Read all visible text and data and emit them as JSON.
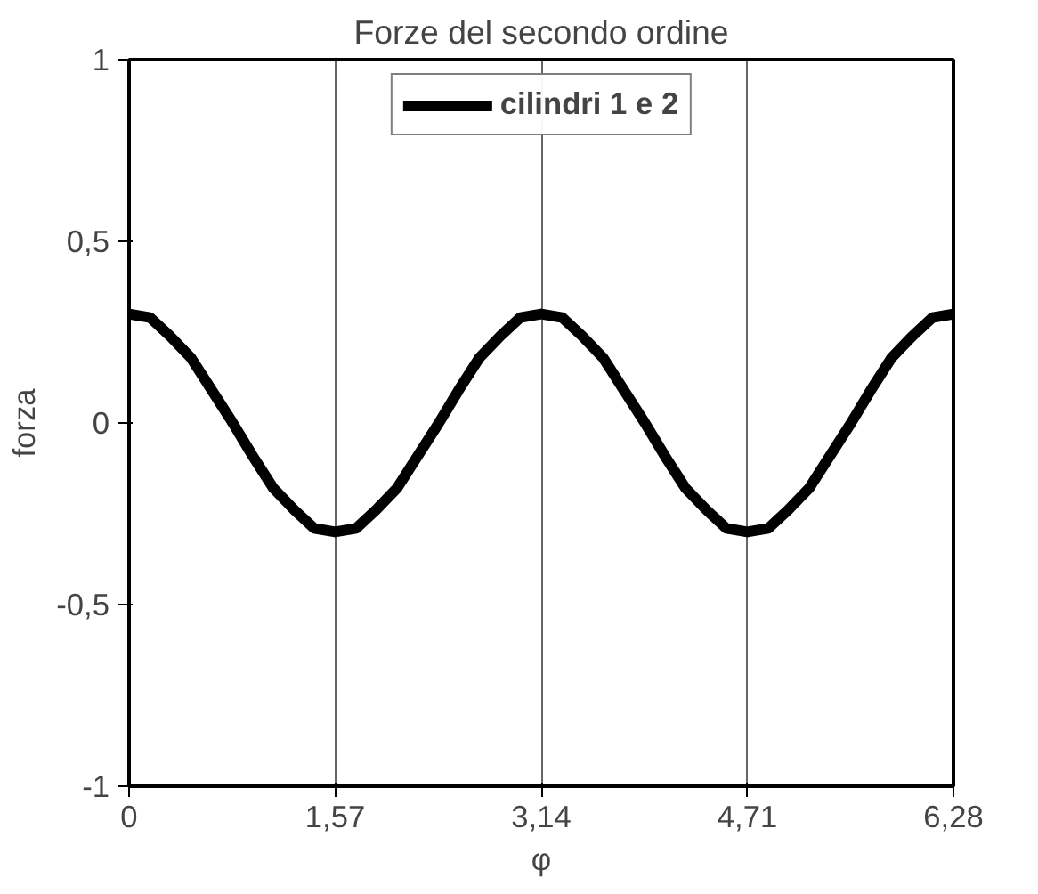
{
  "chart_data": {
    "type": "line",
    "title": "Forze del secondo ordine",
    "xlabel": "φ",
    "ylabel": "forza",
    "x": [
      0,
      0.16,
      0.31,
      0.47,
      0.63,
      0.79,
      0.94,
      1.1,
      1.26,
      1.41,
      1.57,
      1.73,
      1.88,
      2.04,
      2.2,
      2.36,
      2.51,
      2.67,
      2.83,
      2.98,
      3.14,
      3.3,
      3.45,
      3.61,
      3.77,
      3.93,
      4.08,
      4.24,
      4.4,
      4.55,
      4.71,
      4.87,
      5.02,
      5.18,
      5.34,
      5.5,
      5.65,
      5.81,
      5.97,
      6.12,
      6.28
    ],
    "series": [
      {
        "name": "cilindri 1 e 2",
        "color": "#000000",
        "values": [
          0.3,
          0.29,
          0.24,
          0.18,
          0.09,
          0,
          -0.09,
          -0.18,
          -0.24,
          -0.29,
          -0.3,
          -0.29,
          -0.24,
          -0.18,
          -0.09,
          0,
          0.09,
          0.18,
          0.24,
          0.29,
          0.3,
          0.29,
          0.24,
          0.18,
          0.09,
          0,
          -0.09,
          -0.18,
          -0.24,
          -0.29,
          -0.3,
          -0.29,
          -0.24,
          -0.18,
          -0.09,
          0,
          0.09,
          0.18,
          0.24,
          0.29,
          0.3
        ]
      }
    ],
    "xlim": [
      0,
      6.28
    ],
    "ylim": [
      -1,
      1
    ],
    "xticks": [
      0,
      {
        "value": 1.57,
        "label": "1,57"
      },
      {
        "value": 3.14,
        "label": "3,14"
      },
      {
        "value": 4.71,
        "label": "4,71"
      },
      {
        "value": 6.28,
        "label": "6,28"
      }
    ],
    "yticks": [
      -1,
      {
        "value": -0.5,
        "label": "-0,5"
      },
      0,
      {
        "value": 0.5,
        "label": "0,5"
      },
      1
    ],
    "grid": "x",
    "legend": "top",
    "marker": "none",
    "line_style": "solid"
  }
}
